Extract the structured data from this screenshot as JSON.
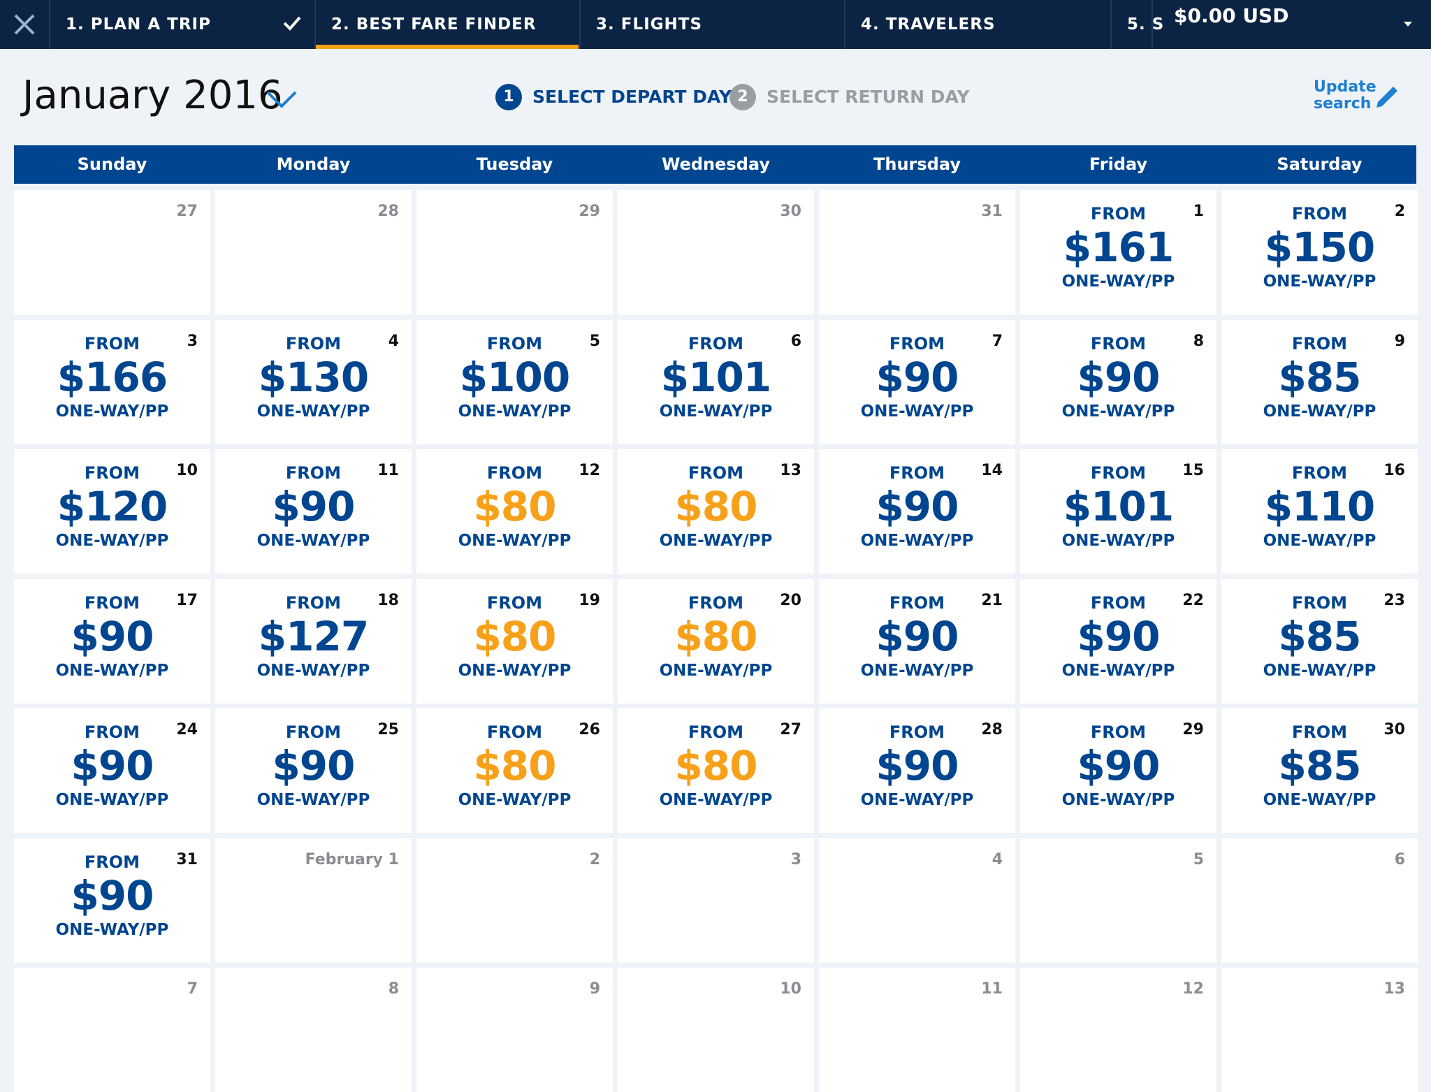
{
  "nav": {
    "steps": [
      "1. PLAN A TRIP",
      "2. BEST FARE FINDER",
      "3. FLIGHTS",
      "4. TRAVELERS",
      "5. S"
    ],
    "total": "$0.00 USD"
  },
  "header": {
    "month": "January 2016",
    "step1_number": "1",
    "step1": "SELECT DEPART DAY",
    "step2_number": "2",
    "step2": "SELECT RETURN DAY",
    "update_search": "Update search"
  },
  "calendar": {
    "weekdays": [
      "Sunday",
      "Monday",
      "Tuesday",
      "Wednesday",
      "Thursday",
      "Friday",
      "Saturday"
    ],
    "fare_label": "FROM",
    "fare_unit": "ONE-WAY/PP",
    "highlight_color": "#f7a11a",
    "price_color": "#00458f",
    "weeks": [
      [
        {
          "day": "27"
        },
        {
          "day": "28"
        },
        {
          "day": "29"
        },
        {
          "day": "30"
        },
        {
          "day": "31"
        },
        {
          "day": "1",
          "price": "$161"
        },
        {
          "day": "2",
          "price": "$150"
        }
      ],
      [
        {
          "day": "3",
          "price": "$166"
        },
        {
          "day": "4",
          "price": "$130"
        },
        {
          "day": "5",
          "price": "$100"
        },
        {
          "day": "6",
          "price": "$101"
        },
        {
          "day": "7",
          "price": "$90"
        },
        {
          "day": "8",
          "price": "$90"
        },
        {
          "day": "9",
          "price": "$85"
        }
      ],
      [
        {
          "day": "10",
          "price": "$120"
        },
        {
          "day": "11",
          "price": "$90"
        },
        {
          "day": "12",
          "price": "$80",
          "highlight": true
        },
        {
          "day": "13",
          "price": "$80",
          "highlight": true
        },
        {
          "day": "14",
          "price": "$90"
        },
        {
          "day": "15",
          "price": "$101"
        },
        {
          "day": "16",
          "price": "$110"
        }
      ],
      [
        {
          "day": "17",
          "price": "$90"
        },
        {
          "day": "18",
          "price": "$127"
        },
        {
          "day": "19",
          "price": "$80",
          "highlight": true
        },
        {
          "day": "20",
          "price": "$80",
          "highlight": true
        },
        {
          "day": "21",
          "price": "$90"
        },
        {
          "day": "22",
          "price": "$90"
        },
        {
          "day": "23",
          "price": "$85"
        }
      ],
      [
        {
          "day": "24",
          "price": "$90"
        },
        {
          "day": "25",
          "price": "$90"
        },
        {
          "day": "26",
          "price": "$80",
          "highlight": true
        },
        {
          "day": "27",
          "price": "$80",
          "highlight": true
        },
        {
          "day": "28",
          "price": "$90"
        },
        {
          "day": "29",
          "price": "$90"
        },
        {
          "day": "30",
          "price": "$85"
        }
      ],
      [
        {
          "day": "31",
          "price": "$90"
        },
        {
          "day": "February 1"
        },
        {
          "day": "2"
        },
        {
          "day": "3"
        },
        {
          "day": "4"
        },
        {
          "day": "5"
        },
        {
          "day": "6"
        }
      ],
      [
        {
          "day": "7"
        },
        {
          "day": "8"
        },
        {
          "day": "9"
        },
        {
          "day": "10"
        },
        {
          "day": "11"
        },
        {
          "day": "12"
        },
        {
          "day": "13"
        }
      ]
    ]
  }
}
